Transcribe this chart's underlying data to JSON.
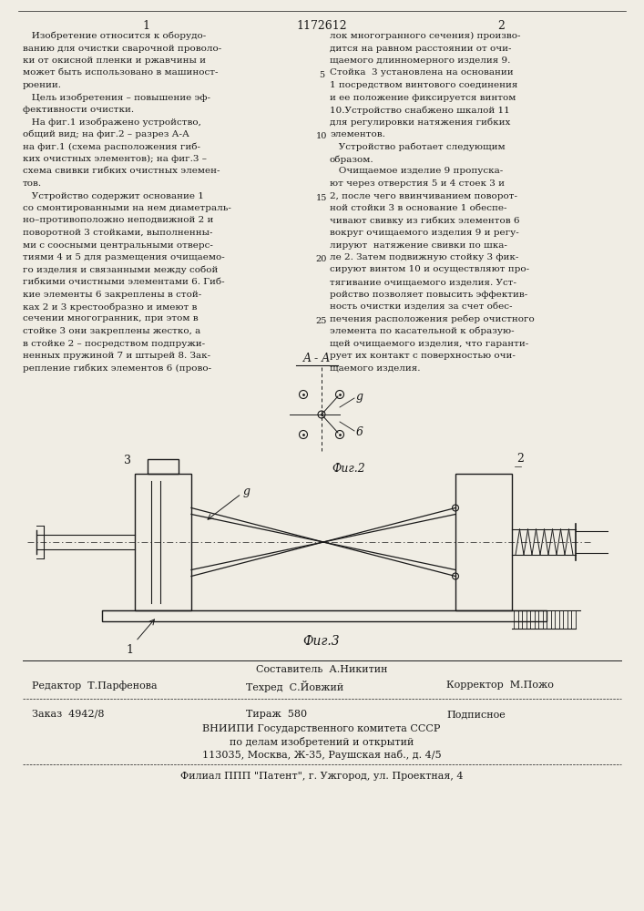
{
  "bg_color": "#f0ede4",
  "text_color": "#1a1a1a",
  "page_number_left": "1",
  "page_number_center": "1172612",
  "page_number_right": "2",
  "col1_lines": [
    "   Изобретение относится к оборудо-",
    "ванию для очистки сварочной проволо-",
    "ки от окисной пленки и ржавчины и",
    "может быть использовано в машиност-",
    "роении.",
    "   Цель изобретения – повышение эф-",
    "фективности очистки.",
    "   На фиг.1 изображено устройство,",
    "общий вид; на фиг.2 – разрез А-А",
    "на фиг.1 (схема расположения гиб-",
    "ких очистных элементов); на фиг.3 –",
    "схема свивки гибких очистных элемен-",
    "тов.",
    "   Устройство содержит основание 1",
    "со смонтированными на нем диаметраль-",
    "но–противоположно неподвижной 2 и",
    "поворотной 3 стойками, выполненны-",
    "ми с соосными центральными отверс-",
    "тиями 4 и 5 для размещения очищаемо-",
    "го изделия и связанными между собой",
    "гибкими очистными элементами 6. Гиб-",
    "кие элементы 6 закреплены в стой-",
    "ках 2 и 3 крестообразно и имеют в",
    "сечении многогранник, при этом в",
    "стойке 3 они закреплены жестко, а",
    "в стойке 2 – посредством подпружи-",
    "ненных пружиной 7 и штырей 8. Зак-",
    "репление гибких элементов 6 (прово-"
  ],
  "col2_lines": [
    "лок многогранного сечения) произво-",
    "дится на равном расстоянии от очи-",
    "щаемого длинномерного изделия 9.",
    "Стойка  3 установлена на основании",
    "1 посредством винтового соединения",
    "и ее положение фиксируется винтом",
    "10.Устройство снабжено шкалой 11",
    "для регулировки натяжения гибких",
    "элементов.",
    "   Устройство работает следующим",
    "образом.",
    "   Очищаемое изделие 9 пропуска-",
    "ют через отверстия 5 и 4 стоек 3 и",
    "2, после чего ввинчиванием поворот-",
    "ной стойки 3 в основание 1 обеспе-",
    "чивают свивку из гибких элементов 6",
    "вокруг очищаемого изделия 9 и регу-",
    "лируют  натяжение свивки по шка-",
    "ле 2. Затем подвижную стойку 3 фик-",
    "сируют винтом 10 и осуществляют про-",
    "тягивание очищаемого изделия. Уст-",
    "ройство позволяет повысить эффектив-",
    "ность очистки изделия за счет обес-",
    "печения расположения ребер очистного",
    "элемента по касательной к образую-",
    "щей очищаемого изделия, что гаранти-",
    "рует их контакт с поверхностью очи-",
    "щаемого изделия."
  ],
  "line_numbers": [
    {
      "n": "5",
      "row": 4
    },
    {
      "n": "10",
      "row": 9
    },
    {
      "n": "15",
      "row": 14
    },
    {
      "n": "20",
      "row": 19
    },
    {
      "n": "25",
      "row": 24
    }
  ],
  "footer_composer": "Составитель  А.Никитин",
  "footer_editor": "Редактор  Т.Парфенова",
  "footer_techred": "Техред  С.Йовжий",
  "footer_corrector": "Корректор  М.Пожо",
  "footer_order": "Заказ  4942/8",
  "footer_print": "Тираж  580",
  "footer_subscription": "Подписное",
  "footer_org1": "ВНИИПИ Государственного комитета СССР",
  "footer_org2": "по делам изобретений и открытий",
  "footer_address": "113035, Москва, Ж-35, Раушская наб., д. 4/5",
  "footer_branch": "Филиал ППП \"Патент\", г. Ужгород, ул. Проектная, 4"
}
